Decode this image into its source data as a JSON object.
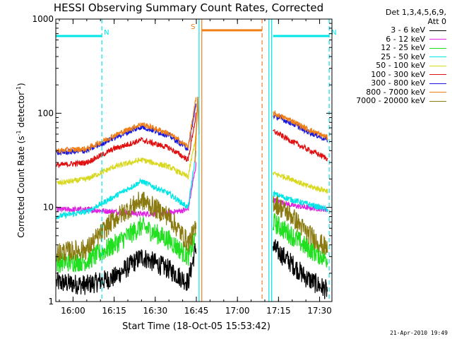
{
  "chart_data": {
    "type": "line",
    "title": "HESSI Observing Summary Count Rates, Corrected",
    "xlabel": "Start Time (18-Oct-05 15:53:42)",
    "ylabel_main": "Corrected Count Rate (s",
    "ylabel_sup1": "-1",
    "ylabel_mid": " detector",
    "ylabel_sup2": "-1",
    "ylabel_end": ")",
    "yscale": "log",
    "ylim": [
      1,
      1000
    ],
    "xlim": [
      "15:53:42",
      "17:34:30"
    ],
    "x_ticks": [
      "16:00",
      "16:15",
      "16:30",
      "16:45",
      "17:00",
      "17:15",
      "17:30"
    ],
    "y_ticks": [
      "1",
      "10",
      "100",
      "1000"
    ],
    "grid": false,
    "legend_placement": "right",
    "legend_header": [
      "Det 1,3,4,5,6,9,",
      "Att 0"
    ],
    "footer_date": "21-Apr-2010 19:49",
    "bars": [
      {
        "label": "N",
        "color": "#00e5e5",
        "start": "15:53:42",
        "end": "16:10:30",
        "level": 660
      },
      {
        "label": "N",
        "color": "#00e5e5",
        "start": "17:13:00",
        "end": "17:33:30",
        "level": 660
      },
      {
        "label": "S",
        "color": "#f07f18",
        "start": "16:47:00",
        "end": "17:09:00",
        "level": 760
      }
    ],
    "verticals": [
      {
        "time": "16:10:30",
        "color": "#00e5e5",
        "style": "dashed"
      },
      {
        "time": "16:46:00",
        "color": "#00e5e5",
        "style": "solid"
      },
      {
        "time": "16:47:00",
        "color": "#f07f18",
        "style": "solid"
      },
      {
        "time": "17:09:00",
        "color": "#f07f18",
        "style": "dashed"
      },
      {
        "time": "17:11:30",
        "color": "#00e5e5",
        "style": "solid"
      },
      {
        "time": "17:12:30",
        "color": "#00e5e5",
        "style": "solid"
      },
      {
        "time": "17:33:30",
        "color": "#00e5e5",
        "style": "dashed"
      }
    ],
    "series": [
      {
        "name": "3 - 6 keV",
        "color": "#000000",
        "x": [
          "15:54",
          "16:05",
          "16:15",
          "16:25",
          "16:35",
          "16:42",
          "16:45",
          "17:13",
          "17:20",
          "17:25",
          "17:33"
        ],
        "y": [
          1.6,
          1.5,
          1.8,
          3.0,
          2.2,
          1.6,
          4,
          3.8,
          2.5,
          1.8,
          1.3
        ]
      },
      {
        "name": "6 - 12 keV",
        "color": "#e020e0",
        "x": [
          "15:54",
          "16:05",
          "16:15",
          "16:25",
          "16:35",
          "16:42",
          "16:45",
          "17:13",
          "17:20",
          "17:25",
          "17:33"
        ],
        "y": [
          9.5,
          9.5,
          9.0,
          8.5,
          8.8,
          9.5,
          30,
          12,
          10.5,
          10,
          9.5
        ]
      },
      {
        "name": "12 - 25 keV",
        "color": "#20e020",
        "x": [
          "15:54",
          "16:05",
          "16:15",
          "16:25",
          "16:35",
          "16:42",
          "16:45",
          "17:13",
          "17:20",
          "17:25",
          "17:33"
        ],
        "y": [
          2.6,
          2.7,
          4.0,
          6.3,
          4.5,
          3.0,
          5,
          7.0,
          5.0,
          3.8,
          2.8
        ]
      },
      {
        "name": "25 - 50 keV",
        "color": "#00e5e5",
        "x": [
          "15:54",
          "16:05",
          "16:15",
          "16:25",
          "16:35",
          "16:42",
          "16:45",
          "17:13",
          "17:20",
          "17:25",
          "17:33"
        ],
        "y": [
          8.0,
          9.0,
          13.0,
          19.0,
          14.0,
          10.0,
          40,
          14,
          12,
          11,
          9.5
        ]
      },
      {
        "name": "50 - 100 keV",
        "color": "#d8d820",
        "x": [
          "15:54",
          "16:05",
          "16:15",
          "16:25",
          "16:35",
          "16:42",
          "16:45",
          "17:13",
          "17:20",
          "17:25",
          "17:33"
        ],
        "y": [
          18,
          20,
          27,
          32,
          27,
          21,
          60,
          23,
          20,
          17,
          15
        ]
      },
      {
        "name": "100 - 300 keV",
        "color": "#e01010",
        "x": [
          "15:54",
          "16:05",
          "16:15",
          "16:25",
          "16:35",
          "16:42",
          "16:45",
          "17:13",
          "17:20",
          "17:25",
          "17:33"
        ],
        "y": [
          28,
          30,
          42,
          52,
          43,
          32,
          100,
          65,
          50,
          42,
          33
        ]
      },
      {
        "name": "300 - 800 keV",
        "color": "#1818e0",
        "x": [
          "15:54",
          "16:05",
          "16:15",
          "16:25",
          "16:35",
          "16:42",
          "16:45",
          "17:13",
          "17:20",
          "17:25",
          "17:33"
        ],
        "y": [
          38,
          40,
          55,
          72,
          58,
          42,
          130,
          95,
          78,
          65,
          52
        ]
      },
      {
        "name": "800 - 7000 keV",
        "color": "#f07f18",
        "x": [
          "15:54",
          "16:05",
          "16:15",
          "16:25",
          "16:35",
          "16:42",
          "16:45",
          "17:13",
          "17:20",
          "17:25",
          "17:33"
        ],
        "y": [
          40,
          42,
          58,
          77,
          61,
          44,
          150,
          100,
          83,
          69,
          55
        ]
      },
      {
        "name": "7000 - 20000 keV",
        "color": "#8a7a10",
        "x": [
          "15:54",
          "16:05",
          "16:15",
          "16:25",
          "16:35",
          "16:42",
          "16:45",
          "17:13",
          "17:20",
          "17:25",
          "17:33"
        ],
        "y": [
          3.3,
          3.6,
          7.5,
          12.0,
          8.0,
          4.2,
          6,
          11.5,
          8.0,
          5.5,
          3.6
        ]
      }
    ]
  }
}
